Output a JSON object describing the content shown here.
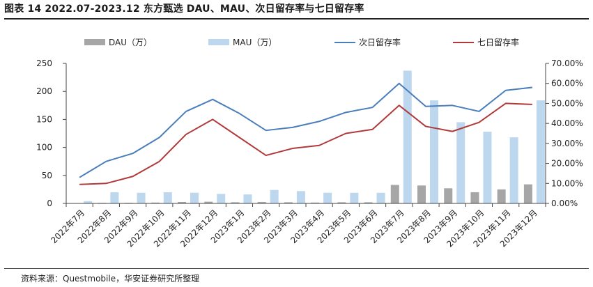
{
  "title": "图表 14 2022.07-2023.12 东方甄选 DAU、MAU、次日留存率与七日留存率",
  "source": "资料来源：Questmobile，华安证券研究所整理",
  "chart_data": {
    "type": "bar",
    "categories": [
      "2022年7月",
      "2022年8月",
      "2022年9月",
      "2022年10月",
      "2022年11月",
      "2022年12月",
      "2023年1月",
      "2023年2月",
      "2023年3月",
      "2023年4月",
      "2023年5月",
      "2023年6月",
      "2023年7月",
      "2023年8月",
      "2023年9月",
      "2023年10月",
      "2023年11月",
      "2023年12月"
    ],
    "series": [
      {
        "name": "DAU（万）",
        "kind": "bar",
        "axis": "left",
        "color": "#a6a6a6",
        "values": [
          0.5,
          1,
          1,
          1.5,
          2.5,
          3,
          2,
          2.5,
          2,
          1.5,
          2,
          2,
          33,
          32,
          27,
          20,
          25,
          34
        ]
      },
      {
        "name": "MAU（万）",
        "kind": "bar",
        "axis": "left",
        "color": "#bdd7ee",
        "values": [
          4,
          20,
          19,
          20,
          19,
          17,
          16,
          24,
          22,
          19,
          19,
          19,
          237,
          184,
          145,
          128,
          118,
          184
        ]
      },
      {
        "name": "次日留存率",
        "kind": "line",
        "axis": "right",
        "color": "#4a7ebb",
        "values": [
          13.0,
          21.0,
          25.0,
          33.0,
          46.0,
          52.0,
          45.0,
          36.5,
          38.0,
          41.0,
          45.5,
          48.0,
          60.0,
          48.5,
          49.0,
          46.0,
          56.5,
          58.0
        ]
      },
      {
        "name": "七日留存率",
        "kind": "line",
        "axis": "right",
        "color": "#b03a3a",
        "values": [
          9.5,
          10.0,
          13.5,
          21.0,
          34.5,
          42.0,
          33.0,
          24.0,
          27.5,
          29.0,
          35.0,
          37.0,
          49.0,
          38.5,
          36.0,
          40.5,
          50.0,
          49.5
        ]
      }
    ],
    "y_left": {
      "min": 0,
      "max": 250,
      "ticks": [
        "0",
        "50",
        "100",
        "150",
        "200",
        "250"
      ]
    },
    "y_right": {
      "min": 0,
      "max": 70,
      "ticks": [
        "0.00%",
        "10.00%",
        "20.00%",
        "30.00%",
        "40.00%",
        "50.00%",
        "60.00%",
        "70.00%"
      ]
    },
    "grid": false,
    "legend_position": "top"
  }
}
